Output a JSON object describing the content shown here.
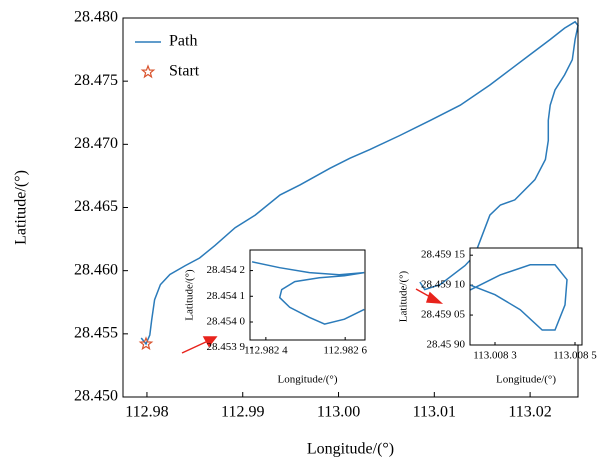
{
  "chart_data": [
    {
      "type": "line",
      "xlabel": "Longitude/(°)",
      "ylabel": "Latitude/(°)",
      "xlim": [
        112.9775,
        113.025
      ],
      "ylim": [
        28.45,
        28.48
      ],
      "xticks": [
        112.98,
        112.99,
        {
          "value": 113.0,
          "label": "113.00"
        },
        113.01,
        113.02
      ],
      "yticks": [
        {
          "value": 28.45,
          "label": "28.450"
        },
        {
          "value": 28.455,
          "label": "28.455"
        },
        {
          "value": 28.46,
          "label": "28.460"
        },
        {
          "value": 28.465,
          "label": "28.465"
        },
        {
          "value": 28.47,
          "label": "28.470"
        },
        {
          "value": 28.475,
          "label": "28.475"
        },
        {
          "value": 28.48,
          "label": "28.480"
        }
      ],
      "legend": "upper left",
      "series": [
        {
          "name": "Path",
          "color": "#2b7bba",
          "x": [
            112.9794,
            112.9799,
            112.9803,
            112.9805,
            112.9808,
            112.9814,
            112.9824,
            112.984,
            112.9855,
            112.9871,
            112.9892,
            112.9913,
            112.9939,
            112.996,
            112.9991,
            113.0012,
            113.0033,
            113.0064,
            113.0096,
            113.0127,
            113.0158,
            113.0179,
            113.02,
            113.0221,
            113.0236,
            113.0247,
            113.025,
            113.0247,
            113.0244,
            113.0236,
            113.0226,
            113.0221,
            113.0219,
            113.0219,
            113.0216,
            113.0205,
            113.0184,
            113.0169,
            113.0158,
            113.0148,
            113.0142,
            113.0132,
            113.0106,
            113.009,
            113.0085
          ],
          "y": [
            28.45467,
            28.4542,
            28.45491,
            28.4561,
            28.4577,
            28.4589,
            28.4597,
            28.4604,
            28.461,
            28.462,
            28.4634,
            28.4644,
            28.466,
            28.4668,
            28.4681,
            28.4689,
            28.4696,
            28.4707,
            28.4719,
            28.4731,
            28.4747,
            28.4759,
            28.4771,
            28.4783,
            28.4792,
            28.4797,
            28.4794,
            28.4783,
            28.4767,
            28.4755,
            28.4743,
            28.4731,
            28.4719,
            28.4703,
            28.4688,
            28.4672,
            28.4656,
            28.4652,
            28.4644,
            28.4624,
            28.4612,
            28.4604,
            28.4589,
            28.4585,
            28.4591
          ]
        },
        {
          "name": "Start",
          "color": "#d9542e",
          "marker": "star",
          "x": [
            112.9799
          ],
          "y": [
            28.4542
          ]
        }
      ]
    },
    {
      "type": "line",
      "xlabel": "Longitude/(°)",
      "ylabel": "Latitude/(°)",
      "xlim": [
        112.98236,
        112.98265
      ],
      "ylim": [
        28.45393,
        28.45428
      ],
      "xticks": [
        {
          "value": 112.9824,
          "label": "112.982 4"
        },
        {
          "value": 112.9826,
          "label": "112.982 6"
        }
      ],
      "yticks": [
        {
          "value": 28.4539,
          "label": "28.453 9"
        },
        {
          "value": 28.454,
          "label": "28.454 0"
        },
        {
          "value": 28.4541,
          "label": "28.454 1"
        },
        {
          "value": 28.4542,
          "label": "28.454 2"
        }
      ],
      "series": [
        {
          "color": "#2b7bba",
          "x": [
            112.982365,
            112.982435,
            112.98251,
            112.982585,
            112.982648,
            112.982598,
            112.982535,
            112.982473,
            112.98244,
            112.982435,
            112.98246,
            112.98251,
            112.982548,
            112.982598,
            112.982648
          ],
          "y": [
            28.454234,
            28.454211,
            28.454192,
            28.454184,
            28.454192,
            28.45418,
            28.454172,
            28.454157,
            28.454126,
            28.454095,
            28.454057,
            28.454018,
            28.453992,
            28.454011,
            28.454049
          ]
        }
      ]
    },
    {
      "type": "line",
      "xlabel": "Longitude/(°)",
      "ylabel": "Latitude/(°)",
      "xlim": [
        113.0082375,
        113.0085175
      ],
      "ylim": [
        28.459,
        28.459162
      ],
      "xticks": [
        {
          "value": 113.0083,
          "label": "113.008 3"
        },
        {
          "value": 113.0085,
          "label": "113.008 5"
        }
      ],
      "yticks": [
        {
          "value": 28.459,
          "label": "28.45 90"
        },
        {
          "value": 28.45905,
          "label": "28.459 05"
        },
        {
          "value": 28.4591,
          "label": "28.459 10"
        },
        {
          "value": 28.45915,
          "label": "28.459 15"
        }
      ],
      "series": [
        {
          "color": "#2b7bba",
          "x": [
            113.008238,
            113.008313,
            113.008388,
            113.00845,
            113.00848,
            113.008475,
            113.00845,
            113.008418,
            113.008363,
            113.0083,
            113.008238
          ],
          "y": [
            28.459092,
            28.459117,
            28.459134,
            28.459134,
            28.459109,
            28.459067,
            28.459025,
            28.459025,
            28.459059,
            28.459084,
            28.4591
          ]
        }
      ]
    }
  ]
}
